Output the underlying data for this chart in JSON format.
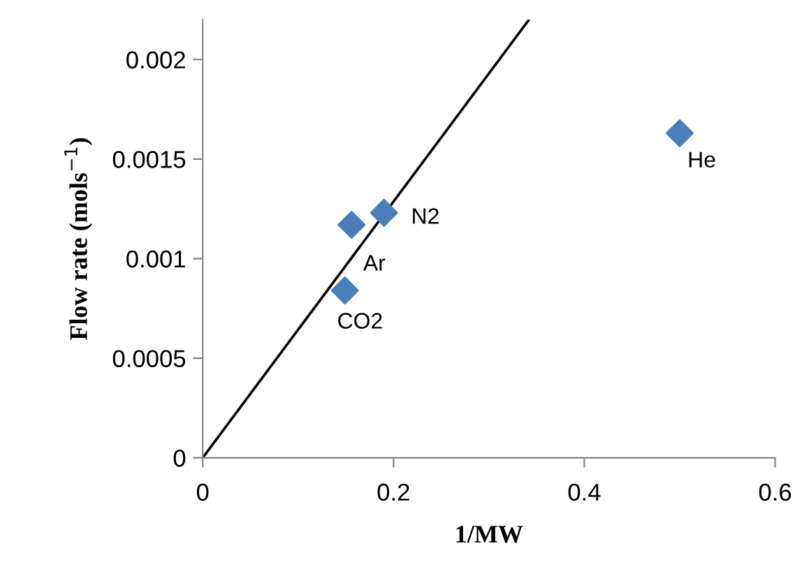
{
  "chart_data": {
    "type": "scatter",
    "xlabel": "1/MW",
    "ylabel": "Flow rate (mols$^{−1}$)",
    "xlim": [
      0,
      0.6
    ],
    "xticks": [
      0,
      0.2,
      0.4,
      0.6
    ],
    "ylim": [
      0,
      0.0022
    ],
    "yticks": [
      0,
      0.0005,
      0.001,
      0.0015,
      0.002
    ],
    "grid": false,
    "legend": false,
    "marker": "diamond",
    "series": [
      {
        "color": "#4a7ebb",
        "x": [
          0.5,
          0.19,
          0.156,
          0.149
        ],
        "values": [
          0.00163,
          0.00123,
          0.00117,
          0.00084
        ]
      },
      {
        "type": "line",
        "color": "#000000",
        "x": [
          0,
          0.342
        ],
        "values": [
          0,
          0.0022
        ],
        "marker": "none",
        "line_style": "solid"
      }
    ],
    "annotations": [
      {
        "text": "He",
        "x": 0.5,
        "y": 0.00163
      },
      {
        "text": "N2",
        "x": 0.19,
        "y": 0.00123
      },
      {
        "text": "Ar",
        "x": 0.156,
        "y": 0.00117
      },
      {
        "text": "CO2",
        "x": 0.149,
        "y": 0.00084
      }
    ]
  }
}
